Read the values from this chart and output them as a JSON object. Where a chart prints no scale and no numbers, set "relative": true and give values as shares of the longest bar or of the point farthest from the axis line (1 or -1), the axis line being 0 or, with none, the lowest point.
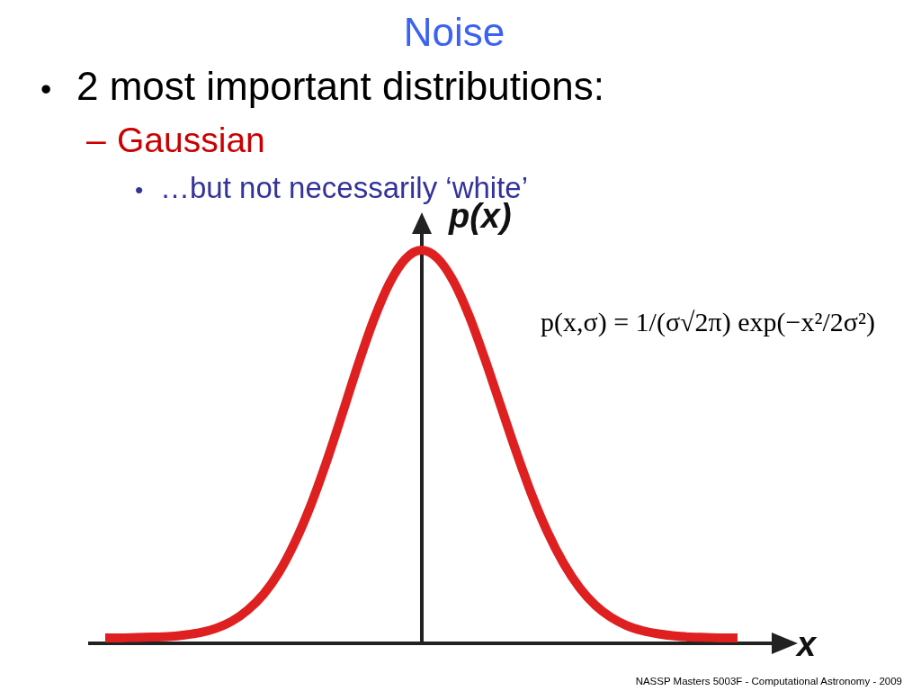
{
  "chart_data": {
    "type": "line",
    "title": "Noise",
    "xlabel": "x",
    "ylabel": "p(x)",
    "annotations": [
      "• 2 most important distributions:",
      "– Gaussian",
      "• …but not necessarily ‘white’",
      "p(x,σ) = 1/(σ√2π) exp(−x²/2σ²)",
      "NASSP Masters 5003F - Computational Astronomy - 2009"
    ],
    "categories": [
      null,
      null,
      null,
      null,
      null,
      null,
      null,
      null,
      null,
      null,
      null,
      null,
      null,
      null,
      null,
      null,
      null,
      null,
      null,
      null,
      null,
      null,
      null,
      null,
      null,
      null,
      null,
      null,
      null,
      null,
      null,
      null,
      null,
      null,
      null,
      null,
      null,
      null,
      null,
      null,
      null
    ],
    "values": [
      0.014,
      0.014,
      0.015,
      0.016,
      0.017,
      0.021,
      0.027,
      0.038,
      0.056,
      0.084,
      0.124,
      0.181,
      0.257,
      0.351,
      0.462,
      0.584,
      0.709,
      0.824,
      0.917,
      0.978,
      1.0,
      0.98,
      0.923,
      0.835,
      0.725,
      0.606,
      0.487,
      0.376,
      0.281,
      0.203,
      0.142,
      0.097,
      0.066,
      0.045,
      0.032,
      0.024,
      0.019,
      0.016,
      0.015,
      0.014,
      0.014
    ],
    "color": "#de2020",
    "relative": true
  }
}
